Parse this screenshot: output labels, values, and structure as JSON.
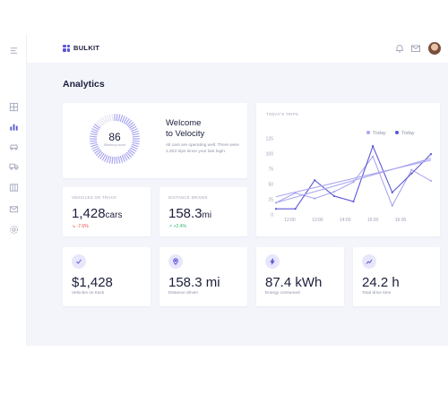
{
  "brand": {
    "name": "BULKIT"
  },
  "colors": {
    "accent": "#5b57d6",
    "accent_light": "#a9a6f0",
    "down": "#e5484d",
    "up": "#2fb66b"
  },
  "sidebar": {
    "items": [
      {
        "name": "menu",
        "icon": "menu-icon"
      },
      {
        "name": "grid",
        "icon": "grid-icon"
      },
      {
        "name": "analytics",
        "icon": "bar-chart-icon",
        "active": true
      },
      {
        "name": "car",
        "icon": "car-icon"
      },
      {
        "name": "truck",
        "icon": "truck-icon"
      },
      {
        "name": "map",
        "icon": "map-icon"
      },
      {
        "name": "mail",
        "icon": "mail-icon"
      },
      {
        "name": "settings",
        "icon": "gear-icon"
      }
    ]
  },
  "header": {
    "icons": [
      "bell-icon",
      "mail-icon",
      "avatar"
    ]
  },
  "page": {
    "title": "Analytics"
  },
  "welcome": {
    "score": "86",
    "score_sub": "Efficiency score",
    "score_percent": 86,
    "title_line1": "Welcome",
    "title_line2": "to Velocity",
    "text": "All cars are operating well. There were 1,203 trips since your last login."
  },
  "stats": {
    "vehicles": {
      "label": "VEHICLES ON TRACK",
      "value": "1,428",
      "unit": "cars",
      "delta": "↘ -7.6%"
    },
    "distance": {
      "label": "DISTANCE DRIVEN",
      "value": "158.3",
      "unit": "mi",
      "delta": "↗ +2.4%"
    }
  },
  "chart_data": {
    "type": "line",
    "title": "TODAY'S TRIPS",
    "categories": [
      "12:00",
      "13:00",
      "14:00",
      "15:00",
      "16:00"
    ],
    "y_ticks": [
      0,
      25,
      50,
      75,
      100,
      125
    ],
    "ylim": [
      0,
      125
    ],
    "legend": [
      "Today",
      "Today"
    ],
    "legend_position": "top-right",
    "grid": false,
    "series": [
      {
        "name": "Today",
        "color": "#a9a6f0",
        "x": [
          11.5,
          12.2,
          12.9,
          13.6,
          14.3,
          15.0,
          15.7,
          16.4,
          17.1
        ],
        "values": [
          20,
          36,
          27,
          38,
          54,
          96,
          15,
          74,
          56
        ]
      },
      {
        "name": "Today",
        "color": "#5b57d6",
        "x": [
          11.5,
          12.2,
          12.9,
          13.6,
          14.3,
          15.0,
          15.7,
          16.4,
          17.1
        ],
        "values": [
          10,
          10,
          57,
          31,
          22,
          113,
          37,
          68,
          100
        ]
      },
      {
        "name": "",
        "color": "#a9a6f0",
        "x": [
          11.5,
          17.1
        ],
        "values": [
          30,
          90
        ]
      },
      {
        "name": "",
        "color": "#a9a6f0",
        "x": [
          11.5,
          17.1
        ],
        "values": [
          20,
          93
        ]
      }
    ]
  },
  "kpis": [
    {
      "icon": "check-icon",
      "value": "$1,428",
      "label": "Vehicles on track"
    },
    {
      "icon": "pin-icon",
      "value": "158.3 mi",
      "label": "Distance driven"
    },
    {
      "icon": "bolt-icon",
      "value": "87.4 kWh",
      "label": "Energy consumed"
    },
    {
      "icon": "trend-icon",
      "value": "24.2 h",
      "label": "Total drive time"
    }
  ]
}
